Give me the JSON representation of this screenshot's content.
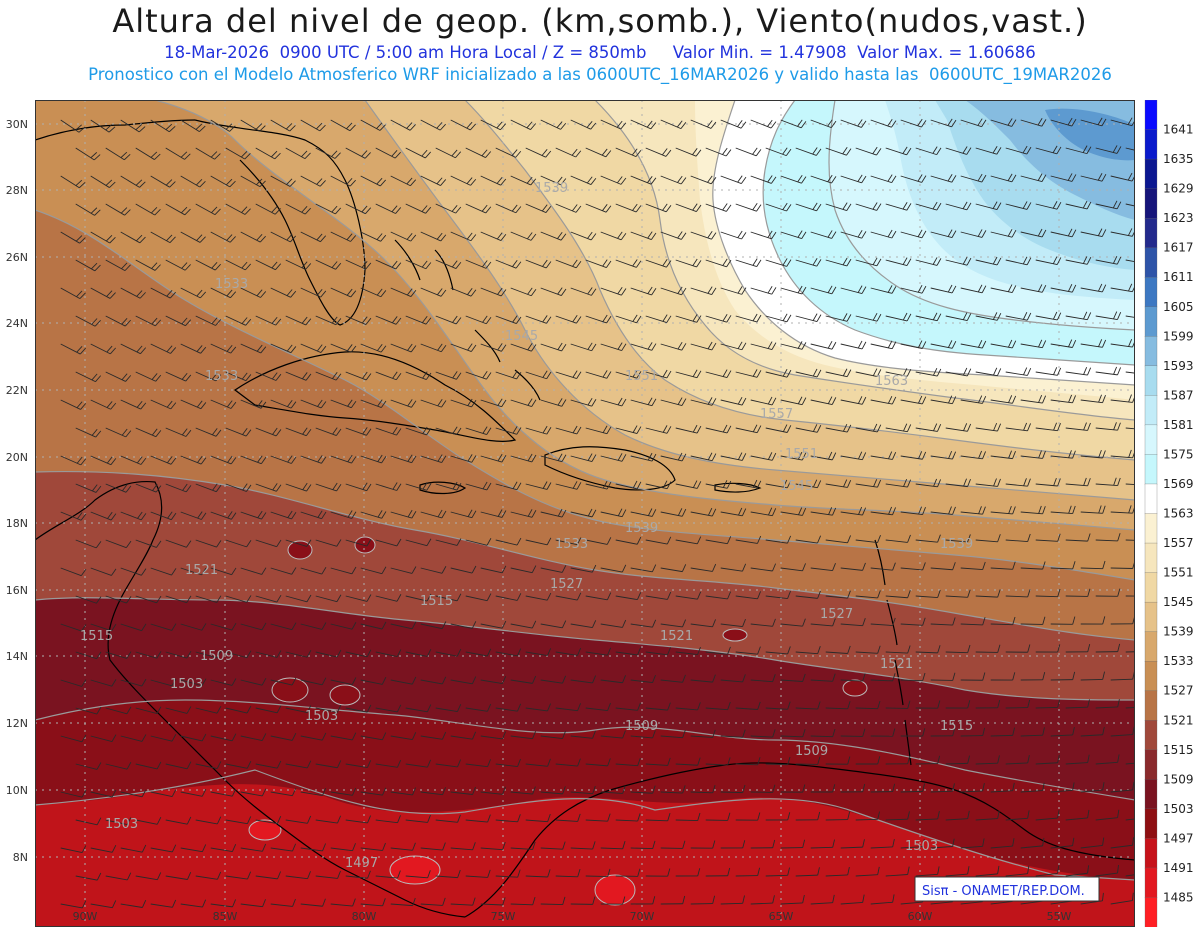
{
  "header": {
    "title": "Altura del nivel de geop. (km,somb.), Viento(nudos,vast.)",
    "subtitle_line1": "18-Mar-2026  0900 UTC / 5:00 am Hora Local / Z = 850mb     Valor Min. = 1.47908  Valor Max. = 1.60686",
    "subtitle_line2": "Pronostico con el Modelo Atmosferico WRF inicializado a las 0600UTC_16MAR2026 y valido hasta las  0600UTC_19MAR2026"
  },
  "map": {
    "lat_labels": [
      "30N",
      "28N",
      "26N",
      "24N",
      "22N",
      "20N",
      "18N",
      "16N",
      "14N",
      "12N",
      "10N",
      "8N"
    ],
    "lon_labels": [
      "90W",
      "85W",
      "80W",
      "75W",
      "70W",
      "65W",
      "60W",
      "55W"
    ],
    "contour_labels": [
      {
        "text": "1539"
      },
      {
        "text": "1533"
      },
      {
        "text": "1533"
      },
      {
        "text": "1545"
      },
      {
        "text": "1551"
      },
      {
        "text": "1557"
      },
      {
        "text": "1563"
      },
      {
        "text": "1551"
      },
      {
        "text": "1545"
      },
      {
        "text": "1539"
      },
      {
        "text": "1539"
      },
      {
        "text": "1533"
      },
      {
        "text": "1527"
      },
      {
        "text": "1527"
      },
      {
        "text": "1521"
      },
      {
        "text": "1521"
      },
      {
        "text": "1521"
      },
      {
        "text": "1515"
      },
      {
        "text": "1515"
      },
      {
        "text": "1515"
      },
      {
        "text": "1509"
      },
      {
        "text": "1509"
      },
      {
        "text": "1509"
      },
      {
        "text": "1503"
      },
      {
        "text": "1503"
      },
      {
        "text": "1503"
      },
      {
        "text": "1503"
      },
      {
        "text": "1497"
      }
    ],
    "credit": "Sisπ - ONAMET/REP.DOM.",
    "colors": {
      "land_line": "#000000",
      "grid": "#b0b0b0",
      "contour": "#9a9a9a"
    }
  },
  "colorbar": {
    "levels": [
      "1641",
      "1635",
      "1629",
      "1623",
      "1617",
      "1611",
      "1605",
      "1599",
      "1593",
      "1587",
      "1581",
      "1575",
      "1569",
      "1563",
      "1557",
      "1551",
      "1545",
      "1539",
      "1533",
      "1527",
      "1521",
      "1515",
      "1509",
      "1503",
      "1497",
      "1491",
      "1485"
    ],
    "colors": [
      "#0a0aff",
      "#0a1acc",
      "#0b1790",
      "#16157a",
      "#232a8c",
      "#2e54a8",
      "#3d78c2",
      "#5d9ad0",
      "#86bce0",
      "#a8dcef",
      "#c2ecf8",
      "#d6f7fd",
      "#c5f7fc",
      "#ffffff",
      "#fbf1d2",
      "#f6e6bd",
      "#f0d8a4",
      "#e6c289",
      "#d8a86c",
      "#c98f54",
      "#b87446",
      "#a0483a",
      "#8a2a2c",
      "#7a1320",
      "#8e0f12",
      "#c6121a",
      "#e21820",
      "#ff1f24"
    ]
  }
}
